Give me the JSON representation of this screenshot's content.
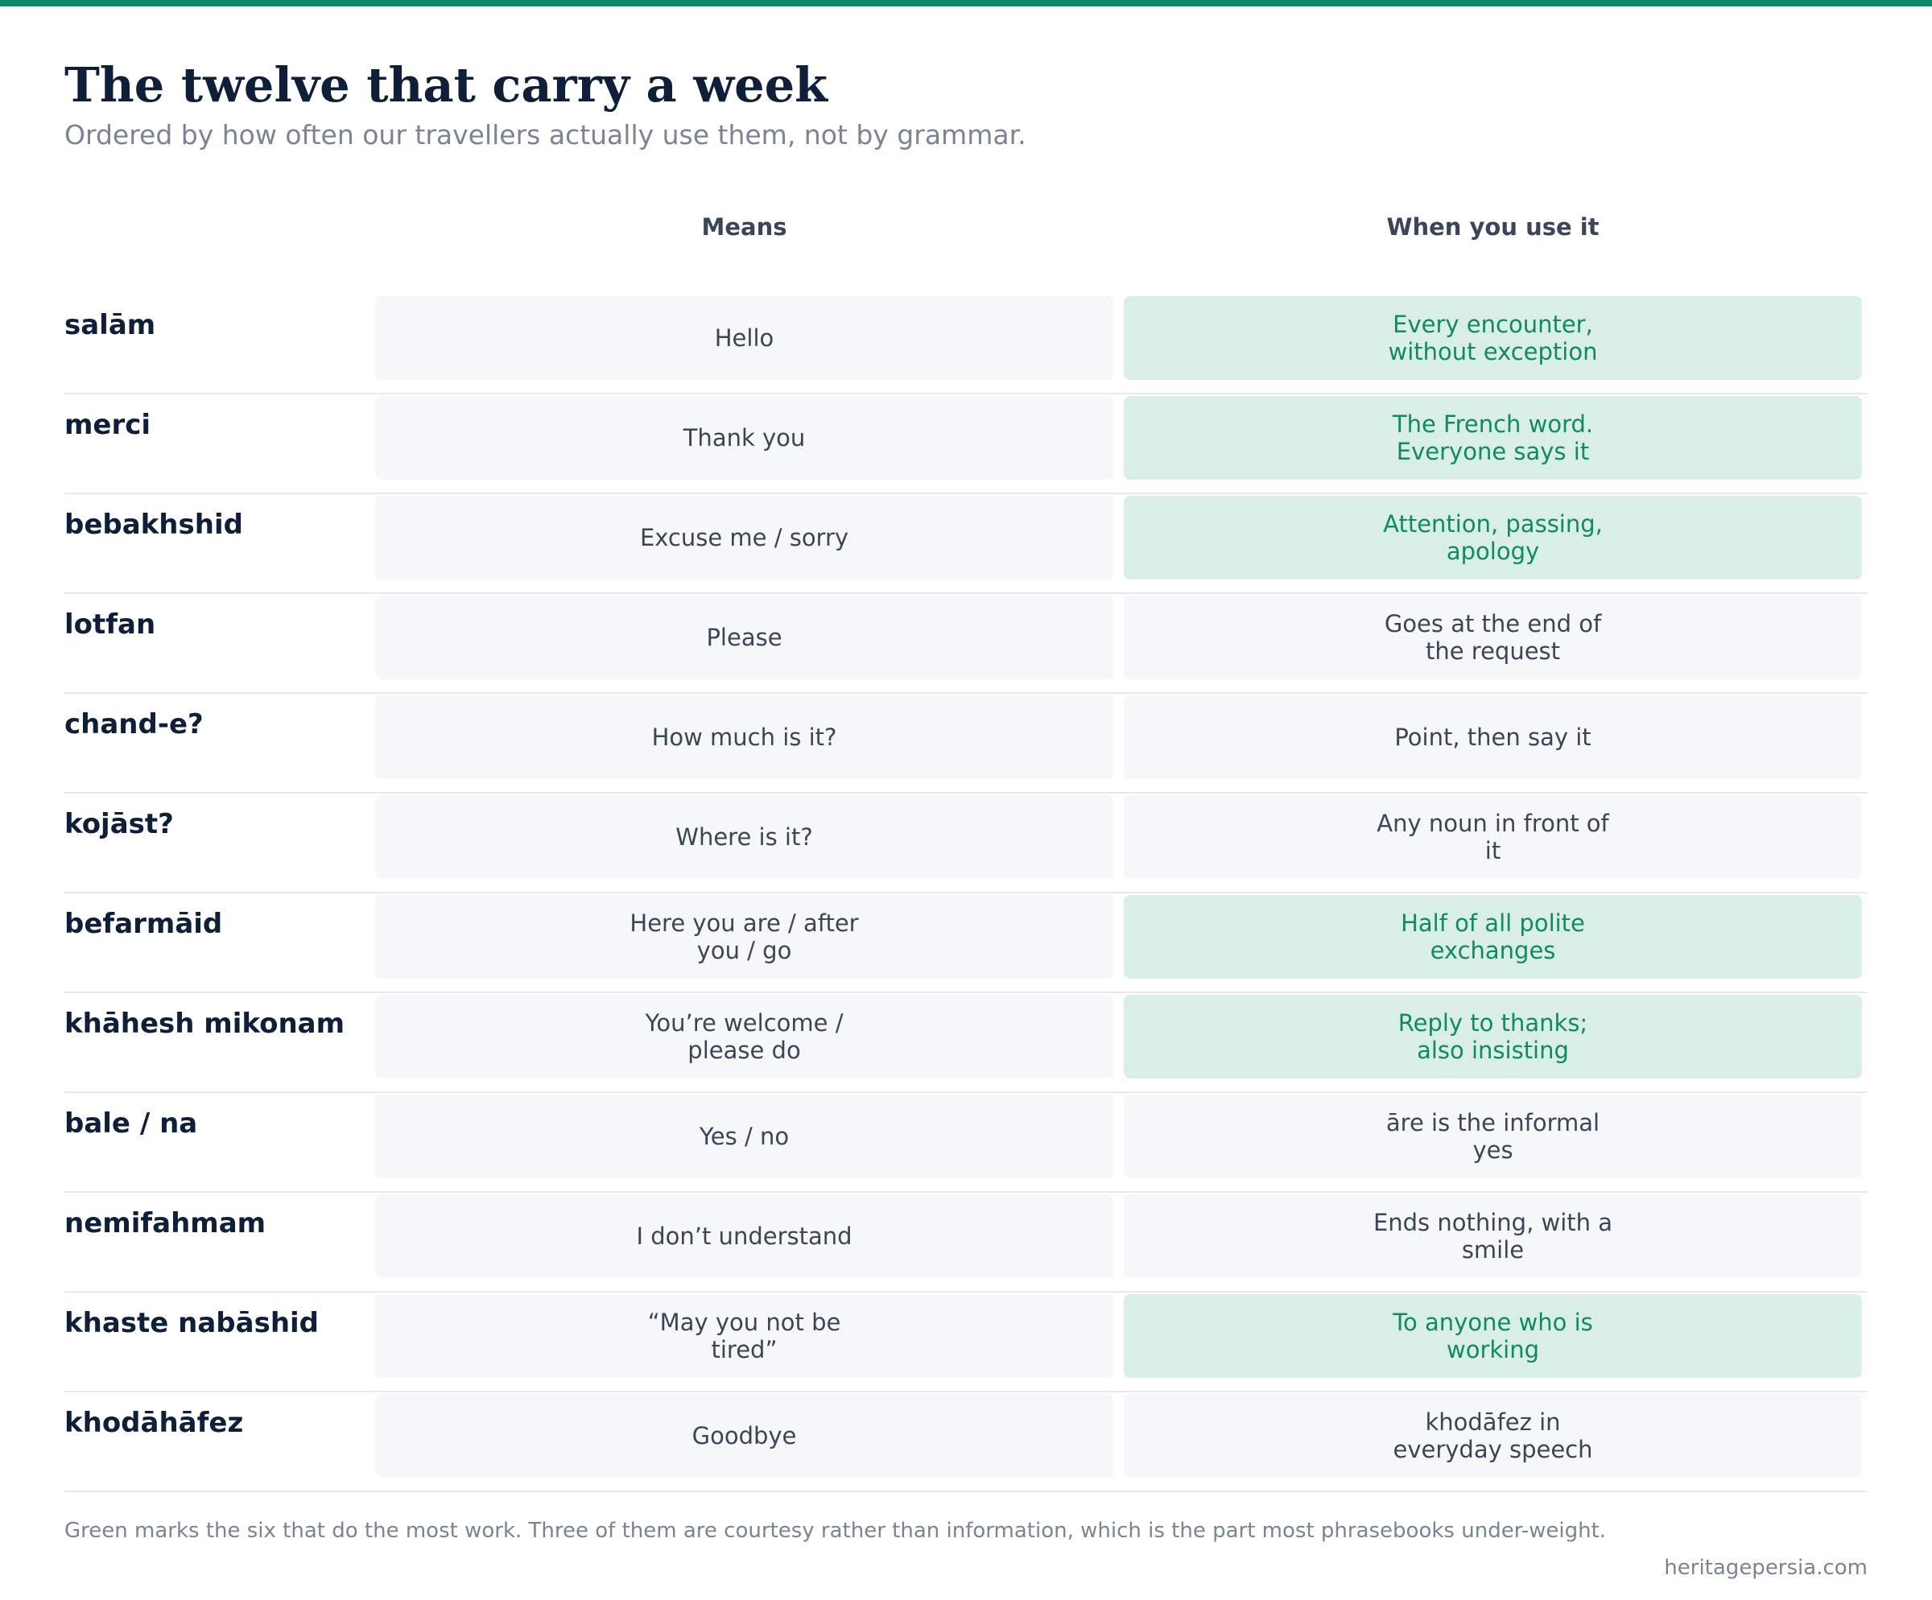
{
  "title": "The twelve that carry a week",
  "subtitle": "Ordered by how often our travellers actually use them, not by grammar.",
  "columns": {
    "means": "Means",
    "when": "When you use it"
  },
  "accent_color": "#0f8a64",
  "highlight_fill": "#d9efe6",
  "rows": [
    {
      "term": "salām",
      "means": "Hello",
      "when": "Every encounter, without exception",
      "highlight": true
    },
    {
      "term": "merci",
      "means": "Thank you",
      "when": "The French word. Everyone says it",
      "highlight": true
    },
    {
      "term": "bebakhshid",
      "means": "Excuse me / sorry",
      "when": "Attention, passing, apology",
      "highlight": true
    },
    {
      "term": "lotfan",
      "means": "Please",
      "when": "Goes at the end of the request",
      "highlight": false
    },
    {
      "term": "chand-e?",
      "means": "How much is it?",
      "when": "Point, then say it",
      "highlight": false
    },
    {
      "term": "kojāst?",
      "means": "Where is it?",
      "when": "Any noun in front of it",
      "highlight": false
    },
    {
      "term": "befarmāid",
      "means": "Here you are / after you / go",
      "when": "Half of all polite exchanges",
      "highlight": true
    },
    {
      "term": "khāhesh mikonam",
      "means": "You’re welcome / please do",
      "when": "Reply to thanks; also insisting",
      "highlight": true
    },
    {
      "term": "bale / na",
      "means": "Yes / no",
      "when": "āre is the informal yes",
      "highlight": false
    },
    {
      "term": "nemifahmam",
      "means": "I don’t understand",
      "when": "Ends nothing, with a smile",
      "highlight": false
    },
    {
      "term": "khaste nabāshid",
      "means": "“May you not be tired”",
      "when": "To anyone who is working",
      "highlight": true
    },
    {
      "term": "khodāhāfez",
      "means": "Goodbye",
      "when": "khodāfez in everyday speech",
      "highlight": false
    }
  ],
  "footnote": "Green marks the six that do the most work. Three of them are courtesy rather than information, which is the part most phrasebooks under-weight.",
  "source": "heritagepersia.com"
}
